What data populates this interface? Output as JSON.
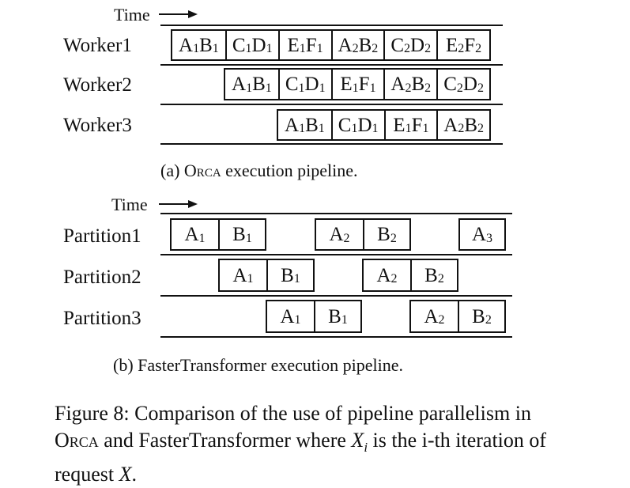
{
  "time_label": "Time",
  "orca": {
    "rows": [
      {
        "label": "Worker1",
        "cells": [
          [
            "A",
            "1",
            "B",
            "1"
          ],
          [
            "C",
            "1",
            "D",
            "1"
          ],
          [
            "E",
            "1",
            "F",
            "1"
          ],
          [
            "A",
            "2",
            "B",
            "2"
          ],
          [
            "C",
            "2",
            "D",
            "2"
          ],
          [
            "E",
            "2",
            "F",
            "2"
          ]
        ]
      },
      {
        "label": "Worker2",
        "cells": [
          [
            "A",
            "1",
            "B",
            "1"
          ],
          [
            "C",
            "1",
            "D",
            "1"
          ],
          [
            "E",
            "1",
            "F",
            "1"
          ],
          [
            "A",
            "2",
            "B",
            "2"
          ],
          [
            "C",
            "2",
            "D",
            "2"
          ]
        ]
      },
      {
        "label": "Worker3",
        "cells": [
          [
            "A",
            "1",
            "B",
            "1"
          ],
          [
            "C",
            "1",
            "D",
            "1"
          ],
          [
            "E",
            "1",
            "F",
            "1"
          ],
          [
            "A",
            "2",
            "B",
            "2"
          ]
        ]
      }
    ],
    "caption_prefix": "(a) ",
    "caption_name": "Orca",
    "caption_suffix": " execution pipeline."
  },
  "ft": {
    "rows": [
      {
        "label": "Partition1",
        "groups": [
          [
            [
              "A",
              "1"
            ],
            [
              "B",
              "1"
            ]
          ],
          [
            [
              "A",
              "2"
            ],
            [
              "B",
              "2"
            ]
          ],
          [
            [
              "A",
              "3"
            ]
          ]
        ]
      },
      {
        "label": "Partition2",
        "groups": [
          [
            [
              "A",
              "1"
            ],
            [
              "B",
              "1"
            ]
          ],
          [
            [
              "A",
              "2"
            ],
            [
              "B",
              "2"
            ]
          ]
        ]
      },
      {
        "label": "Partition3",
        "groups": [
          [
            [
              "A",
              "1"
            ],
            [
              "B",
              "1"
            ]
          ],
          [
            [
              "A",
              "2"
            ],
            [
              "B",
              "2"
            ]
          ]
        ]
      }
    ],
    "caption": "(b) FasterTransformer execution pipeline."
  },
  "figure_caption": {
    "lead": "Figure 8: Comparison of the use of pipeline parallelism in",
    "orca": "Orca",
    "mid": " and FasterTransformer where ",
    "var": "X",
    "var_sub": "i",
    "mid2": " is the i-th iteration of",
    "line3": "request ",
    "var2": "X",
    "end": "."
  }
}
